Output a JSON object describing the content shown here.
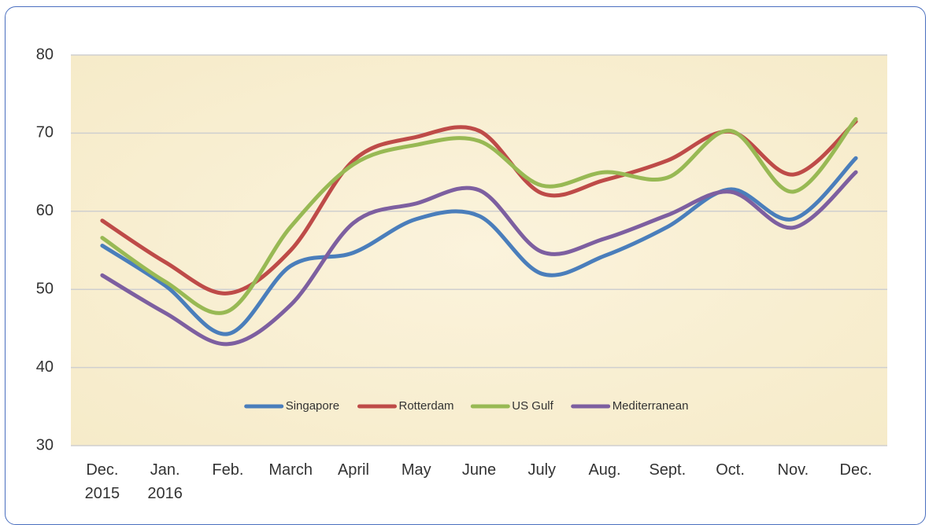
{
  "chart_data": {
    "type": "line",
    "categories": [
      "Dec. 2015",
      "Jan. 2016",
      "Feb.",
      "March",
      "April",
      "May",
      "June",
      "July",
      "Aug.",
      "Sept.",
      "Oct.",
      "Nov.",
      "Dec."
    ],
    "series": [
      {
        "name": "Singapore",
        "color": "#4a7ebb",
        "values": [
          55.6,
          50.5,
          44.3,
          53,
          54.7,
          59,
          59.4,
          52,
          54.3,
          58,
          62.8,
          59,
          66.8
        ]
      },
      {
        "name": "Rotterdam",
        "color": "#be4b48",
        "values": [
          58.8,
          53.5,
          49.5,
          55,
          66.5,
          69.5,
          70.3,
          62.3,
          64,
          66.5,
          70.2,
          64.7,
          71.5
        ]
      },
      {
        "name": "US Gulf",
        "color": "#98b954",
        "values": [
          56.6,
          51,
          47.2,
          58,
          66,
          68.5,
          69,
          63.3,
          65,
          64.3,
          70.3,
          62.5,
          71.8
        ]
      },
      {
        "name": "Mediterranean",
        "color": "#7d5fa0",
        "values": [
          51.8,
          47,
          43,
          48,
          58.5,
          61,
          62.7,
          54.8,
          56.5,
          59.5,
          62.5,
          57.9,
          65
        ]
      }
    ],
    "ylim": [
      30,
      80
    ],
    "yticks": [
      30,
      40,
      50,
      60,
      70,
      80
    ],
    "grid": true,
    "smooth": true,
    "legend": "bottom"
  }
}
